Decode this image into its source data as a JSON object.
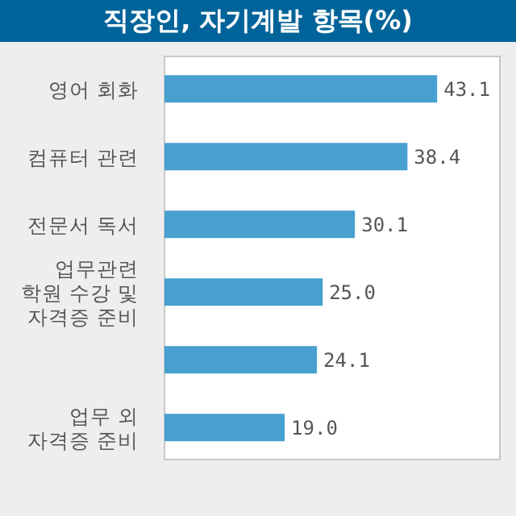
{
  "chart_data": {
    "type": "bar",
    "orientation": "horizontal",
    "title": "직장인, 자기계발 항목(%)",
    "categories": [
      "영어 회화",
      "컴퓨터 관련",
      "전문서 독서",
      "업무관련\n학원 수강 및\n자격증 준비",
      null,
      "업무 외\n자격증 준비"
    ],
    "values": [
      43.1,
      38.4,
      30.1,
      25.0,
      24.1,
      19.0
    ],
    "value_labels": [
      "43.1",
      "38.4",
      "30.1",
      "25.0",
      "24.1",
      "19.0"
    ],
    "color": "#48a0d0"
  }
}
